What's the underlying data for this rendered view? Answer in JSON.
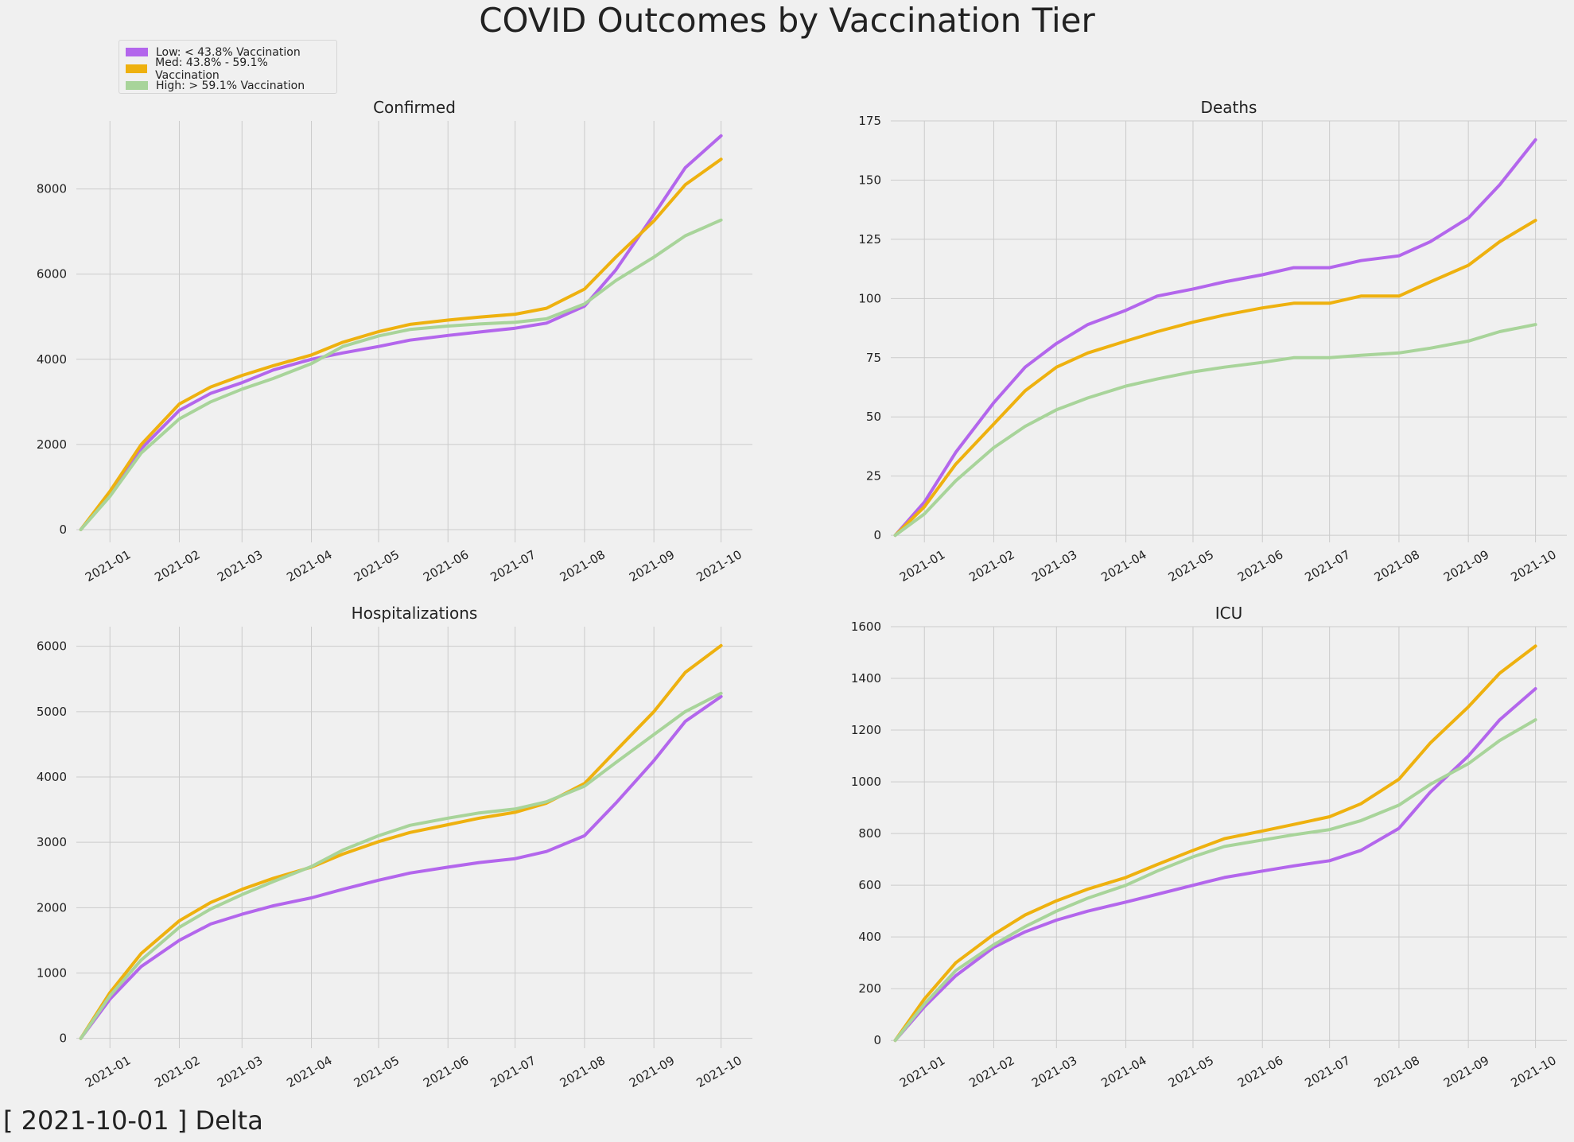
{
  "title": "COVID Outcomes by Vaccination Tier",
  "footer": "[ 2021-10-01 ] Delta",
  "legend": [
    {
      "label": "Low: < 43.8% Vaccination",
      "color": "#b366ec"
    },
    {
      "label": "Med: 43.8% - 59.1% Vaccination",
      "color": "#eeb10f"
    },
    {
      "label": "High: > 59.1%  Vaccination",
      "color": "#a8d49a"
    }
  ],
  "colors": {
    "background": "#f0f0f0",
    "grid": "#cbcbcb",
    "text": "#222222"
  },
  "chart_data": [
    {
      "type": "line",
      "title": "Confirmed",
      "xlabel": "",
      "ylabel": "",
      "xlim": [
        "2020-12-17",
        "2021-10-15"
      ],
      "ylim": [
        -300,
        9600
      ],
      "yticks": [
        0,
        2000,
        4000,
        6000,
        8000
      ],
      "xticks": [
        "2021-01",
        "2021-02",
        "2021-03",
        "2021-04",
        "2021-05",
        "2021-06",
        "2021-07",
        "2021-08",
        "2021-09",
        "2021-10"
      ],
      "grid": true,
      "x": [
        "2020-12-19",
        "2021-01-01",
        "2021-01-15",
        "2021-02-01",
        "2021-02-15",
        "2021-03-01",
        "2021-03-15",
        "2021-04-01",
        "2021-04-15",
        "2021-05-01",
        "2021-05-15",
        "2021-06-01",
        "2021-06-15",
        "2021-07-01",
        "2021-07-15",
        "2021-08-01",
        "2021-08-15",
        "2021-09-01",
        "2021-09-15",
        "2021-10-01"
      ],
      "series": [
        {
          "name": "Low: < 43.8% Vaccination",
          "color": "#b366ec",
          "values": [
            0,
            850,
            1900,
            2800,
            3200,
            3450,
            3750,
            4000,
            4150,
            4300,
            4450,
            4560,
            4640,
            4730,
            4850,
            5250,
            6100,
            7400,
            8500,
            9250
          ]
        },
        {
          "name": "Med: 43.8% - 59.1% Vaccination",
          "color": "#eeb10f",
          "values": [
            0,
            900,
            2000,
            2950,
            3350,
            3620,
            3850,
            4100,
            4400,
            4650,
            4820,
            4920,
            4990,
            5060,
            5200,
            5650,
            6400,
            7250,
            8100,
            8700
          ]
        },
        {
          "name": "High: > 59.1%  Vaccination",
          "color": "#a8d49a",
          "values": [
            0,
            780,
            1800,
            2600,
            3000,
            3300,
            3550,
            3900,
            4300,
            4550,
            4700,
            4780,
            4830,
            4870,
            4950,
            5300,
            5850,
            6400,
            6900,
            7270
          ]
        }
      ]
    },
    {
      "type": "line",
      "title": "Deaths",
      "xlabel": "",
      "ylabel": "",
      "xlim": [
        "2020-12-17",
        "2021-10-15"
      ],
      "ylim": [
        -3,
        175
      ],
      "yticks": [
        0,
        25,
        50,
        75,
        100,
        125,
        150,
        175
      ],
      "xticks": [
        "2021-01",
        "2021-02",
        "2021-03",
        "2021-04",
        "2021-05",
        "2021-06",
        "2021-07",
        "2021-08",
        "2021-09",
        "2021-10"
      ],
      "grid": true,
      "x": [
        "2020-12-19",
        "2021-01-01",
        "2021-01-15",
        "2021-02-01",
        "2021-02-15",
        "2021-03-01",
        "2021-03-15",
        "2021-04-01",
        "2021-04-15",
        "2021-05-01",
        "2021-05-15",
        "2021-06-01",
        "2021-06-15",
        "2021-07-01",
        "2021-07-15",
        "2021-08-01",
        "2021-08-15",
        "2021-09-01",
        "2021-09-15",
        "2021-10-01"
      ],
      "series": [
        {
          "name": "Low: < 43.8% Vaccination",
          "color": "#b366ec",
          "values": [
            0,
            14,
            35,
            56,
            71,
            81,
            89,
            95,
            101,
            104,
            107,
            110,
            113,
            113,
            116,
            118,
            124,
            134,
            148,
            167
          ]
        },
        {
          "name": "Med: 43.8% - 59.1% Vaccination",
          "color": "#eeb10f",
          "values": [
            0,
            12,
            30,
            47,
            61,
            71,
            77,
            82,
            86,
            90,
            93,
            96,
            98,
            98,
            101,
            101,
            107,
            114,
            124,
            133
          ]
        },
        {
          "name": "High: > 59.1%  Vaccination",
          "color": "#a8d49a",
          "values": [
            0,
            9,
            23,
            37,
            46,
            53,
            58,
            63,
            66,
            69,
            71,
            73,
            75,
            75,
            76,
            77,
            79,
            82,
            86,
            89
          ]
        }
      ]
    },
    {
      "type": "line",
      "title": "Hospitalizations",
      "xlabel": "",
      "ylabel": "",
      "xlim": [
        "2020-12-17",
        "2021-10-15"
      ],
      "ylim": [
        -150,
        6300
      ],
      "yticks": [
        0,
        1000,
        2000,
        3000,
        4000,
        5000,
        6000
      ],
      "xticks": [
        "2021-01",
        "2021-02",
        "2021-03",
        "2021-04",
        "2021-05",
        "2021-06",
        "2021-07",
        "2021-08",
        "2021-09",
        "2021-10"
      ],
      "grid": true,
      "x": [
        "2020-12-19",
        "2021-01-01",
        "2021-01-15",
        "2021-02-01",
        "2021-02-15",
        "2021-03-01",
        "2021-03-15",
        "2021-04-01",
        "2021-04-15",
        "2021-05-01",
        "2021-05-15",
        "2021-06-01",
        "2021-06-15",
        "2021-07-01",
        "2021-07-15",
        "2021-08-01",
        "2021-08-15",
        "2021-09-01",
        "2021-09-15",
        "2021-10-01"
      ],
      "series": [
        {
          "name": "Low: < 43.8% Vaccination",
          "color": "#b366ec",
          "values": [
            0,
            600,
            1100,
            1500,
            1750,
            1900,
            2030,
            2150,
            2280,
            2420,
            2530,
            2620,
            2690,
            2750,
            2860,
            3100,
            3600,
            4250,
            4850,
            5230
          ]
        },
        {
          "name": "Med: 43.8% - 59.1% Vaccination",
          "color": "#eeb10f",
          "values": [
            0,
            700,
            1300,
            1800,
            2080,
            2280,
            2450,
            2620,
            2820,
            3010,
            3150,
            3270,
            3370,
            3460,
            3600,
            3900,
            4400,
            5000,
            5600,
            6010
          ]
        },
        {
          "name": "High: > 59.1%  Vaccination",
          "color": "#a8d49a",
          "values": [
            0,
            650,
            1200,
            1700,
            1980,
            2200,
            2400,
            2630,
            2880,
            3100,
            3260,
            3370,
            3450,
            3510,
            3620,
            3860,
            4220,
            4650,
            5000,
            5280
          ]
        }
      ]
    },
    {
      "type": "line",
      "title": "ICU",
      "xlabel": "",
      "ylabel": "",
      "xlim": [
        "2020-12-17",
        "2021-10-15"
      ],
      "ylim": [
        -30,
        1600
      ],
      "yticks": [
        0,
        200,
        400,
        600,
        800,
        1000,
        1200,
        1400,
        1600
      ],
      "xticks": [
        "2021-01",
        "2021-02",
        "2021-03",
        "2021-04",
        "2021-05",
        "2021-06",
        "2021-07",
        "2021-08",
        "2021-09",
        "2021-10"
      ],
      "grid": true,
      "x": [
        "2020-12-19",
        "2021-01-01",
        "2021-01-15",
        "2021-02-01",
        "2021-02-15",
        "2021-03-01",
        "2021-03-15",
        "2021-04-01",
        "2021-04-15",
        "2021-05-01",
        "2021-05-15",
        "2021-06-01",
        "2021-06-15",
        "2021-07-01",
        "2021-07-15",
        "2021-08-01",
        "2021-08-15",
        "2021-09-01",
        "2021-09-15",
        "2021-10-01"
      ],
      "series": [
        {
          "name": "Low: < 43.8% Vaccination",
          "color": "#b366ec",
          "values": [
            0,
            130,
            250,
            360,
            420,
            465,
            500,
            535,
            565,
            600,
            630,
            655,
            675,
            695,
            735,
            820,
            960,
            1100,
            1240,
            1360
          ]
        },
        {
          "name": "Med: 43.8% - 59.1% Vaccination",
          "color": "#eeb10f",
          "values": [
            0,
            160,
            300,
            410,
            485,
            540,
            585,
            630,
            680,
            735,
            780,
            810,
            835,
            865,
            915,
            1010,
            1150,
            1290,
            1420,
            1525
          ]
        },
        {
          "name": "High: > 59.1%  Vaccination",
          "color": "#a8d49a",
          "values": [
            0,
            140,
            270,
            370,
            440,
            500,
            550,
            600,
            655,
            710,
            750,
            775,
            795,
            815,
            850,
            910,
            990,
            1070,
            1160,
            1240
          ]
        }
      ]
    }
  ]
}
